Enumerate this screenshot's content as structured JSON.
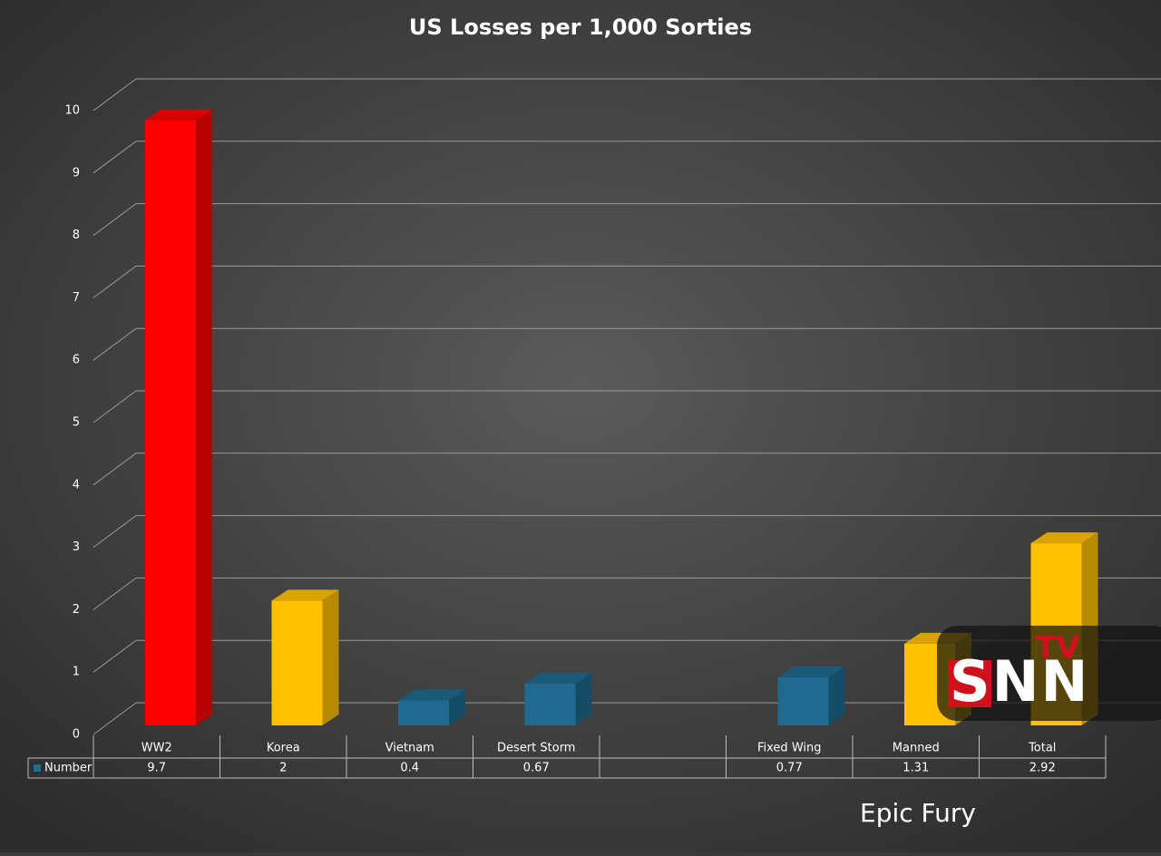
{
  "chart_data": {
    "type": "bar3d",
    "title": "US Losses per 1,000 Sorties",
    "categories": [
      "WW2",
      "Korea",
      "Vietnam",
      "Desert Storm",
      null,
      "Fixed Wing",
      "Manned",
      "Total"
    ],
    "series": [
      {
        "name": "Number",
        "color": "#1f6a8e",
        "values": [
          9.7,
          2,
          0.4,
          0.67,
          null,
          0.77,
          1.31,
          2.92
        ],
        "colors": [
          "#ff0000",
          "#ffc000",
          "#1f6a8e",
          "#1f6a8e",
          null,
          "#1f6a8e",
          "#ffc000",
          "#ffc000"
        ]
      }
    ],
    "ylim": [
      0,
      10
    ],
    "yticks": [
      0,
      1,
      2,
      3,
      4,
      5,
      6,
      7,
      8,
      9,
      10
    ],
    "grid": true,
    "data_table": true,
    "annotation": "Epic Fury",
    "logo": {
      "main": "SNN",
      "superscript": "TV"
    }
  }
}
